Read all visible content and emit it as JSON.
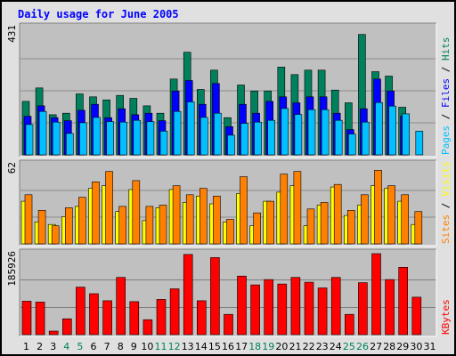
{
  "colors": {
    "background": "#e0e0e0",
    "panel": "#c0c0c0",
    "title": "#0000ff",
    "hits": "#00805c",
    "files": "#0000ff",
    "pages": "#00c0ff",
    "visits": "#ffff00",
    "sites": "#ff8000",
    "kbytes": "#ff0000",
    "weekend_label": "#00805c",
    "weekday_label": "#000000"
  },
  "chart_data": {
    "type": "bar",
    "title": "Daily usage for June 2005",
    "x": [
      "1",
      "2",
      "3",
      "4",
      "5",
      "6",
      "7",
      "8",
      "9",
      "10",
      "11",
      "12",
      "13",
      "14",
      "15",
      "16",
      "17",
      "18",
      "19",
      "20",
      "21",
      "22",
      "23",
      "24",
      "25",
      "26",
      "27",
      "28",
      "29",
      "30",
      "31"
    ],
    "weekend_days": [
      "4",
      "5",
      "11",
      "12",
      "18",
      "19",
      "25",
      "26"
    ],
    "panels": [
      {
        "id": "requests",
        "max_label": "431",
        "ymax": 431,
        "series": [
          {
            "name": "Hits",
            "values": [
              180,
              225,
              135,
              140,
              205,
              195,
              185,
              200,
              190,
              165,
              140,
              255,
              345,
              220,
              285,
              125,
              235,
              215,
              215,
              295,
              270,
              285,
              285,
              218,
              175,
              405,
              280,
              265,
              160,
              null,
              null
            ]
          },
          {
            "name": "Files",
            "values": [
              130,
              165,
              125,
              115,
              150,
              170,
              125,
              155,
              135,
              140,
              115,
              215,
              250,
              170,
              240,
              95,
              170,
              140,
              180,
              195,
              175,
              195,
              195,
              140,
              85,
              155,
              255,
              215,
              130,
              null,
              null
            ]
          },
          {
            "name": "Pages",
            "values": [
              102,
              146,
              110,
              72,
              108,
              126,
              112,
              110,
              116,
              112,
              80,
              146,
              178,
              126,
              140,
              66,
              106,
              110,
              116,
              156,
              136,
              152,
              152,
              116,
              70,
              110,
              176,
              164,
              138,
              80,
              null
            ]
          }
        ],
        "legend": [
          "Pages",
          "Files",
          "Hits"
        ]
      },
      {
        "id": "visitors",
        "max_label": "62",
        "ymax": 62,
        "series": [
          {
            "name": "Visits",
            "values": [
              33,
              17,
              15,
              21,
              29,
              43,
              45,
              25,
              42,
              18,
              28,
              42,
              32,
              37,
              31,
              17,
              39,
              14,
              33,
              40,
              45,
              14,
              30,
              44,
              22,
              30,
              45,
              43,
              33,
              15,
              null
            ]
          },
          {
            "name": "Sites",
            "values": [
              38,
              26,
              14,
              28,
              36,
              48,
              56,
              29,
              49,
              29,
              30,
              45,
              38,
              43,
              37,
              19,
              52,
              24,
              33,
              54,
              56,
              27,
              32,
              46,
              26,
              38,
              57,
              45,
              38,
              25,
              null
            ]
          }
        ],
        "legend": [
          "Sites",
          "Visits"
        ]
      },
      {
        "id": "kbytes",
        "max_label": "185926",
        "ymax": 185926,
        "series": [
          {
            "name": "KBytes",
            "values": [
              76000,
              74000,
              8000,
              36000,
              108000,
              93000,
              77000,
              130000,
              75000,
              34000,
              80000,
              104000,
              182000,
              77000,
              175000,
              46000,
              133000,
              113000,
              125000,
              115000,
              130000,
              119000,
              106000,
              130000,
              46000,
              118000,
              184000,
              125000,
              153000,
              85000,
              null
            ]
          }
        ],
        "legend": [
          "KBytes"
        ]
      }
    ]
  }
}
